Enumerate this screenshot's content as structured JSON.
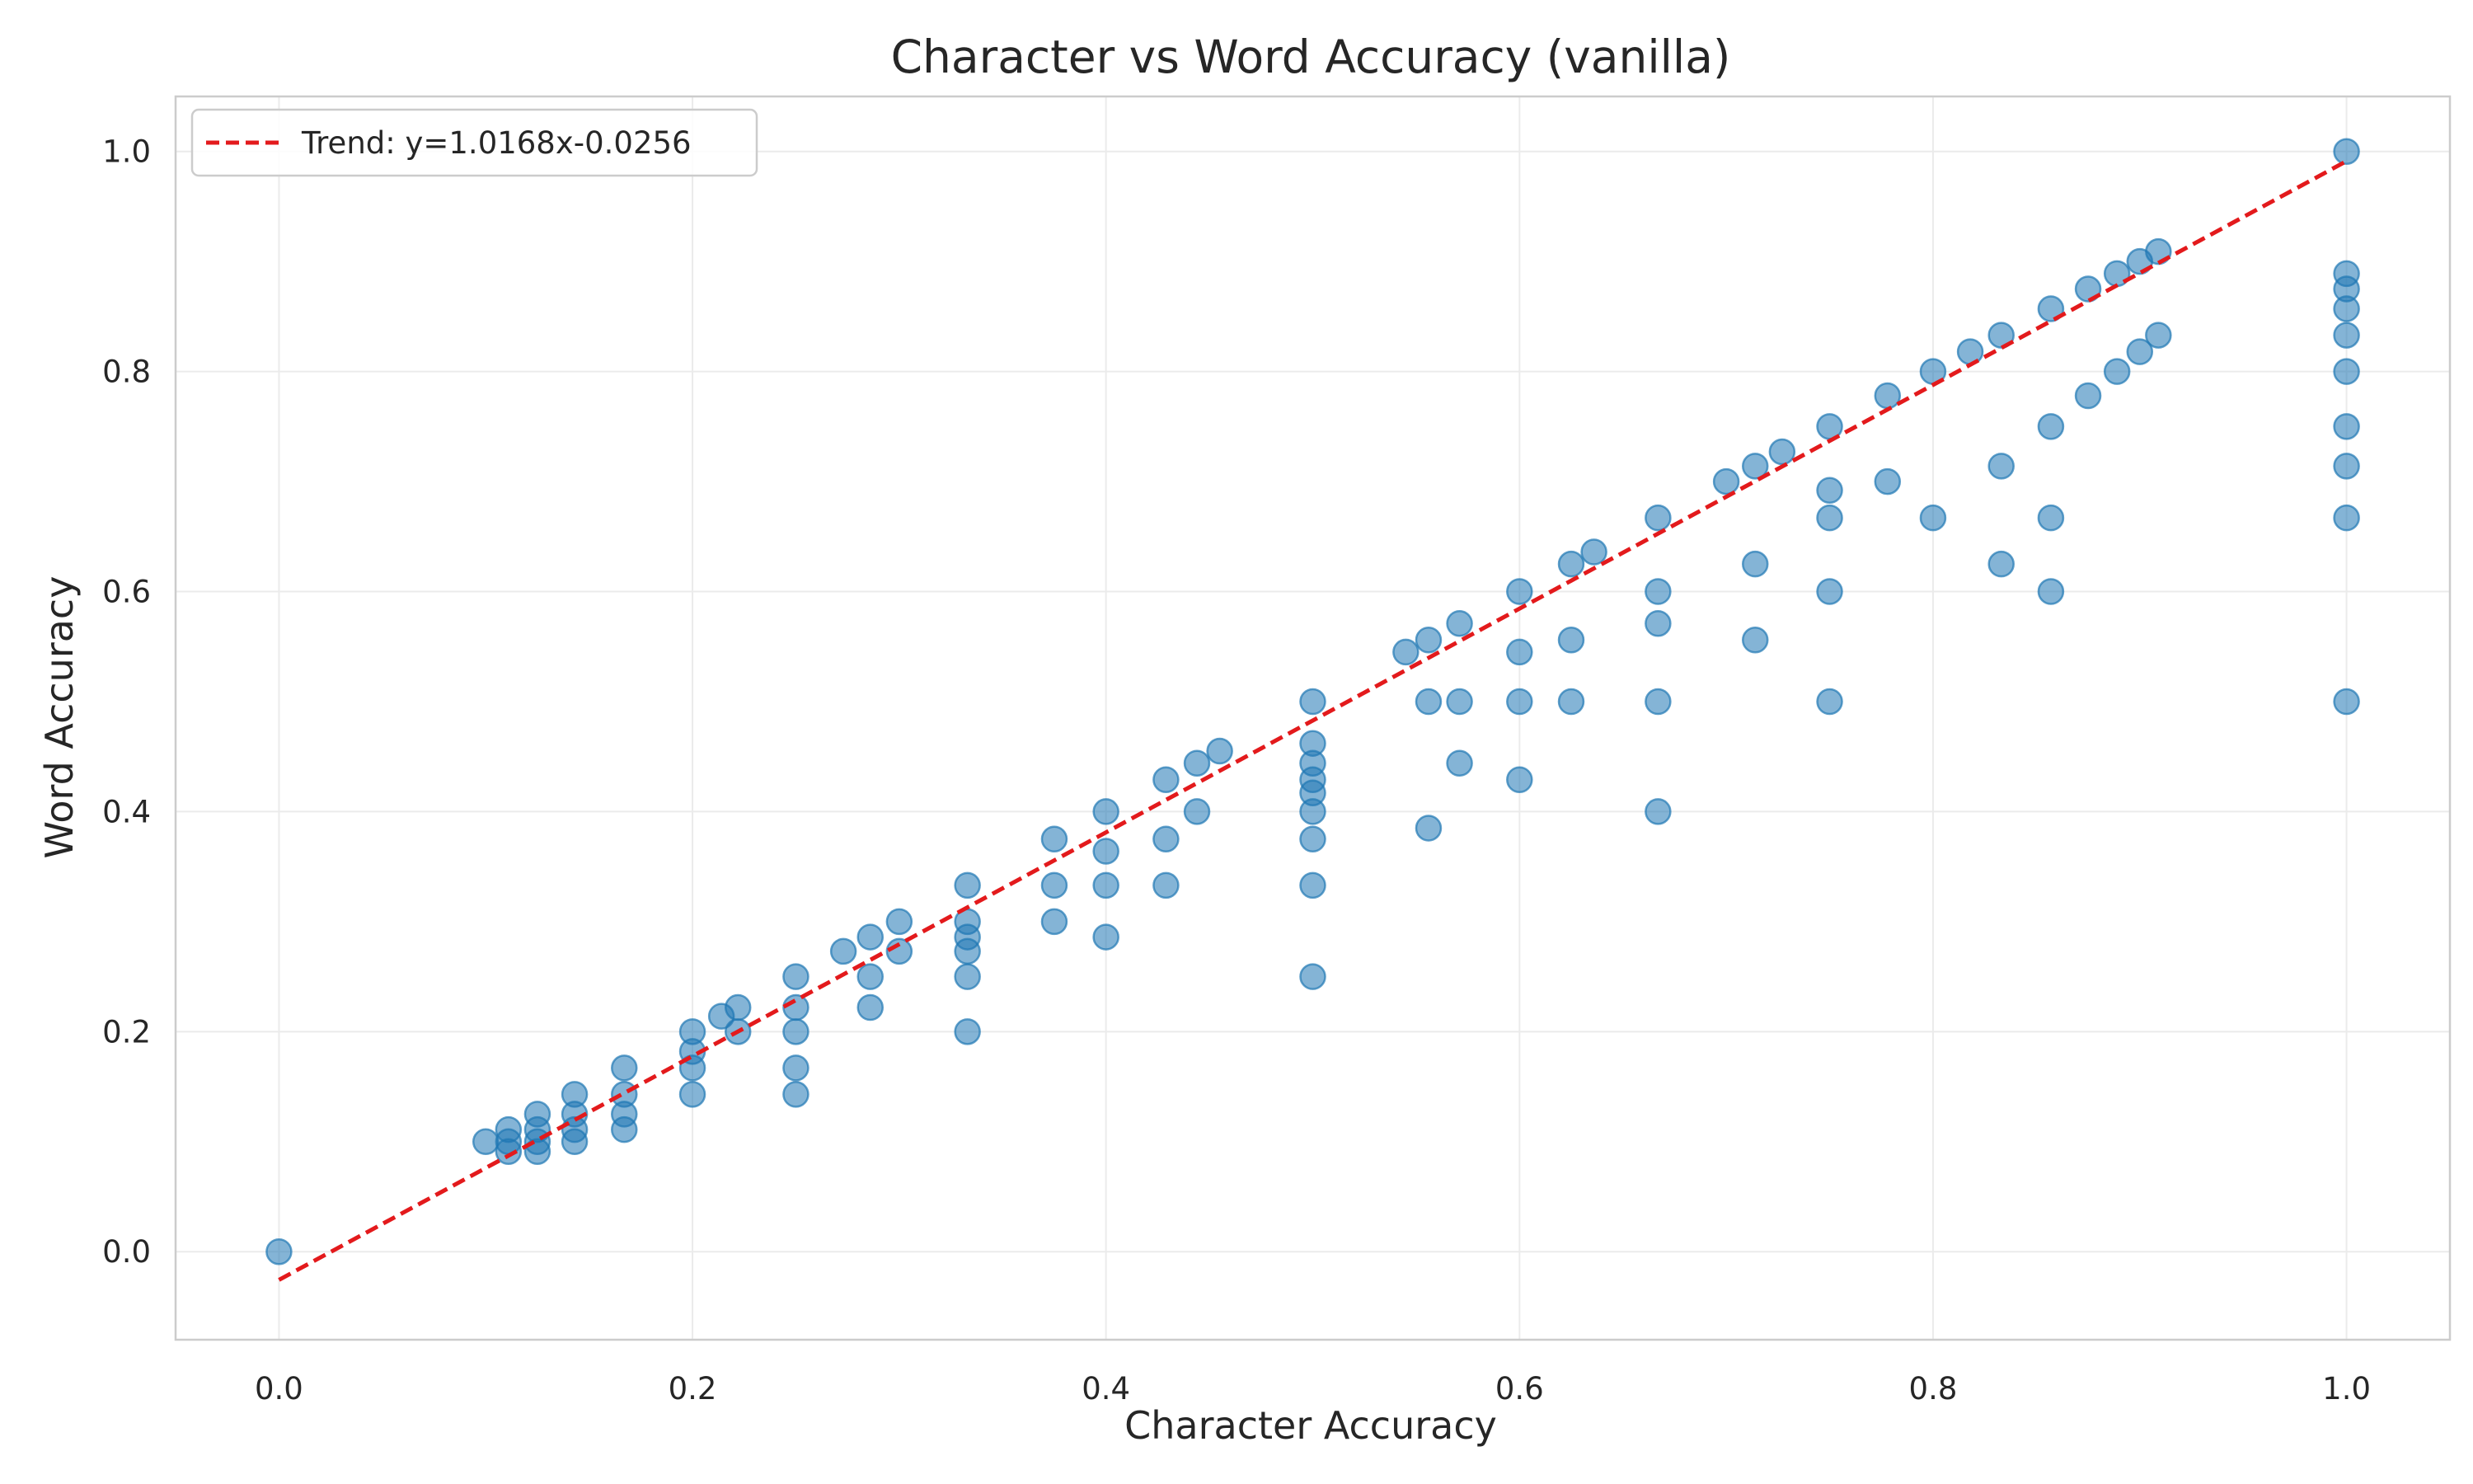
{
  "chart_data": {
    "type": "scatter",
    "title": "Character vs Word Accuracy (vanilla)",
    "xlabel": "Character Accuracy",
    "ylabel": "Word Accuracy",
    "xlim": [
      -0.05,
      1.05
    ],
    "ylim": [
      -0.08,
      1.05
    ],
    "xticks": [
      0.0,
      0.2,
      0.4,
      0.6,
      0.8,
      1.0
    ],
    "yticks": [
      0.0,
      0.2,
      0.4,
      0.6,
      0.8,
      1.0
    ],
    "xtick_labels": [
      "0.0",
      "0.2",
      "0.4",
      "0.6",
      "0.8",
      "1.0"
    ],
    "ytick_labels": [
      "0.0",
      "0.2",
      "0.4",
      "0.6",
      "0.8",
      "1.0"
    ],
    "grid": true,
    "legend_position": "top-left",
    "point_color": "#1f77b4",
    "trend": {
      "label": "Trend: y=1.0168x-0.0256",
      "slope": 1.0168,
      "intercept": -0.0256,
      "color": "#e31a1c",
      "style": "dashed"
    },
    "points": [
      [
        0.0,
        0.0
      ],
      [
        0.1,
        0.1
      ],
      [
        0.111,
        0.111
      ],
      [
        0.111,
        0.1
      ],
      [
        0.111,
        0.091
      ],
      [
        0.125,
        0.125
      ],
      [
        0.125,
        0.111
      ],
      [
        0.125,
        0.1
      ],
      [
        0.125,
        0.091
      ],
      [
        0.143,
        0.143
      ],
      [
        0.143,
        0.125
      ],
      [
        0.143,
        0.111
      ],
      [
        0.143,
        0.1
      ],
      [
        0.167,
        0.167
      ],
      [
        0.167,
        0.143
      ],
      [
        0.167,
        0.125
      ],
      [
        0.167,
        0.111
      ],
      [
        0.2,
        0.2
      ],
      [
        0.2,
        0.182
      ],
      [
        0.2,
        0.167
      ],
      [
        0.2,
        0.143
      ],
      [
        0.214,
        0.214
      ],
      [
        0.222,
        0.222
      ],
      [
        0.222,
        0.2
      ],
      [
        0.25,
        0.25
      ],
      [
        0.25,
        0.222
      ],
      [
        0.25,
        0.2
      ],
      [
        0.25,
        0.167
      ],
      [
        0.25,
        0.143
      ],
      [
        0.273,
        0.273
      ],
      [
        0.286,
        0.286
      ],
      [
        0.286,
        0.25
      ],
      [
        0.286,
        0.222
      ],
      [
        0.3,
        0.3
      ],
      [
        0.3,
        0.273
      ],
      [
        0.333,
        0.333
      ],
      [
        0.333,
        0.3
      ],
      [
        0.333,
        0.286
      ],
      [
        0.333,
        0.273
      ],
      [
        0.333,
        0.25
      ],
      [
        0.333,
        0.2
      ],
      [
        0.375,
        0.375
      ],
      [
        0.375,
        0.333
      ],
      [
        0.375,
        0.3
      ],
      [
        0.4,
        0.4
      ],
      [
        0.4,
        0.364
      ],
      [
        0.4,
        0.333
      ],
      [
        0.4,
        0.286
      ],
      [
        0.429,
        0.429
      ],
      [
        0.429,
        0.375
      ],
      [
        0.429,
        0.333
      ],
      [
        0.444,
        0.444
      ],
      [
        0.444,
        0.4
      ],
      [
        0.455,
        0.455
      ],
      [
        0.5,
        0.5
      ],
      [
        0.5,
        0.462
      ],
      [
        0.5,
        0.444
      ],
      [
        0.5,
        0.429
      ],
      [
        0.5,
        0.417
      ],
      [
        0.5,
        0.4
      ],
      [
        0.5,
        0.375
      ],
      [
        0.5,
        0.333
      ],
      [
        0.5,
        0.25
      ],
      [
        0.545,
        0.545
      ],
      [
        0.556,
        0.556
      ],
      [
        0.556,
        0.5
      ],
      [
        0.556,
        0.385
      ],
      [
        0.571,
        0.571
      ],
      [
        0.571,
        0.5
      ],
      [
        0.571,
        0.444
      ],
      [
        0.6,
        0.6
      ],
      [
        0.6,
        0.545
      ],
      [
        0.6,
        0.5
      ],
      [
        0.6,
        0.429
      ],
      [
        0.625,
        0.625
      ],
      [
        0.625,
        0.556
      ],
      [
        0.625,
        0.5
      ],
      [
        0.636,
        0.636
      ],
      [
        0.667,
        0.667
      ],
      [
        0.667,
        0.6
      ],
      [
        0.667,
        0.571
      ],
      [
        0.667,
        0.5
      ],
      [
        0.667,
        0.4
      ],
      [
        0.7,
        0.7
      ],
      [
        0.714,
        0.714
      ],
      [
        0.714,
        0.625
      ],
      [
        0.714,
        0.556
      ],
      [
        0.727,
        0.727
      ],
      [
        0.75,
        0.75
      ],
      [
        0.75,
        0.692
      ],
      [
        0.75,
        0.667
      ],
      [
        0.75,
        0.6
      ],
      [
        0.75,
        0.5
      ],
      [
        0.778,
        0.778
      ],
      [
        0.778,
        0.7
      ],
      [
        0.8,
        0.8
      ],
      [
        0.8,
        0.667
      ],
      [
        0.818,
        0.818
      ],
      [
        0.833,
        0.833
      ],
      [
        0.833,
        0.714
      ],
      [
        0.833,
        0.625
      ],
      [
        0.857,
        0.857
      ],
      [
        0.857,
        0.75
      ],
      [
        0.857,
        0.667
      ],
      [
        0.857,
        0.6
      ],
      [
        0.875,
        0.875
      ],
      [
        0.875,
        0.778
      ],
      [
        0.889,
        0.889
      ],
      [
        0.889,
        0.8
      ],
      [
        0.9,
        0.9
      ],
      [
        0.9,
        0.818
      ],
      [
        0.909,
        0.909
      ],
      [
        0.909,
        0.833
      ],
      [
        1.0,
        1.0
      ],
      [
        1.0,
        0.889
      ],
      [
        1.0,
        0.875
      ],
      [
        1.0,
        0.857
      ],
      [
        1.0,
        0.833
      ],
      [
        1.0,
        0.8
      ],
      [
        1.0,
        0.75
      ],
      [
        1.0,
        0.714
      ],
      [
        1.0,
        0.667
      ],
      [
        1.0,
        0.5
      ]
    ]
  }
}
